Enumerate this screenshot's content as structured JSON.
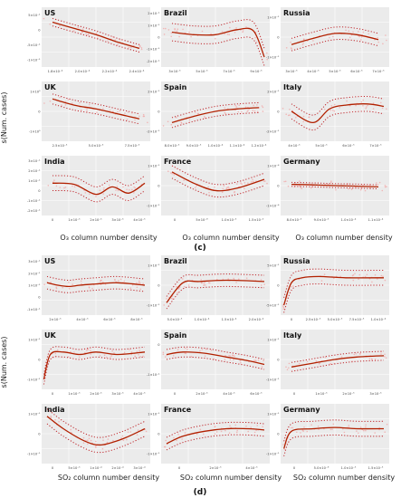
{
  "figure": {
    "panel_labels": [
      "(c)",
      "(d)"
    ]
  },
  "colors": {
    "fit_line": "#b22000",
    "ci_line": "#c0282d",
    "points": "#f2a0a0",
    "panel_bg": "#ebebeb",
    "grid": "#ffffff"
  },
  "chart_data": [
    {
      "type": "line",
      "group": "(c)",
      "xlabel": "O₃ column number density",
      "ylabel": "s(Num. cases)",
      "panels": [
        {
          "country": "US",
          "x": [
            0.1,
            0.3,
            0.5,
            0.7,
            0.9
          ],
          "fit": [
            0.6,
            0.35,
            0.1,
            -0.2,
            -0.45
          ],
          "ci_half": 0.15,
          "x_ticks": [
            "1.8×10⁻⁴",
            "2.0×10⁻⁴",
            "2.2×10⁻⁴",
            "2.4×10⁻⁴"
          ],
          "y_ticks": [
            "5×10⁻¹",
            "0",
            "-5×10⁻¹",
            "-1×10⁻¹"
          ]
        },
        {
          "country": "Brazil",
          "x": [
            0.1,
            0.3,
            0.5,
            0.7,
            0.85,
            0.95
          ],
          "fit": [
            0.2,
            0.1,
            0.1,
            0.3,
            0.25,
            -0.8
          ],
          "ci_half": 0.35,
          "x_ticks": [
            "3×10⁻⁵",
            "5×10⁻⁵",
            "7×10⁻⁵",
            "9×10⁻⁵"
          ],
          "y_ticks": [
            "2×10⁻¹",
            "1×10⁻¹",
            "0",
            "-1×10⁻¹",
            "-2×10⁻¹"
          ]
        },
        {
          "country": "Russia",
          "x": [
            0.1,
            0.3,
            0.5,
            0.7,
            0.9
          ],
          "fit": [
            -0.3,
            -0.05,
            0.15,
            0.1,
            -0.1
          ],
          "ci_half": 0.25,
          "x_ticks": [
            "3×10⁻⁵",
            "4×10⁻⁵",
            "5×10⁻⁵",
            "6×10⁻⁵",
            "7×10⁻⁵"
          ],
          "y_ticks": [
            "1×10⁻¹",
            "0",
            "-1×10⁻¹"
          ]
        },
        {
          "country": "UK",
          "x": [
            0.1,
            0.3,
            0.5,
            0.7,
            0.9
          ],
          "fit": [
            0.5,
            0.25,
            0.1,
            -0.1,
            -0.3
          ],
          "ci_half": 0.2,
          "x_ticks": [
            "2.5×10⁻⁵",
            "5.0×10⁻⁵",
            "7.5×10⁻⁵"
          ],
          "y_ticks": [
            "1×10⁰",
            "0",
            "-1×10⁰"
          ]
        },
        {
          "country": "Spain",
          "x": [
            0.1,
            0.3,
            0.5,
            0.7,
            0.9
          ],
          "fit": [
            -0.45,
            -0.2,
            0.0,
            0.1,
            0.15
          ],
          "ci_half": 0.2,
          "x_ticks": [
            "8.0×10⁻⁵",
            "9.0×10⁻⁵",
            "1.0×10⁻⁴",
            "1.1×10⁻⁴",
            "1.2×10⁻⁴"
          ],
          "y_ticks": [
            "2×10⁻¹",
            "0",
            "-2×10⁻¹"
          ]
        },
        {
          "country": "Italy",
          "x": [
            0.1,
            0.3,
            0.45,
            0.6,
            0.8,
            0.95
          ],
          "fit": [
            0.0,
            -0.45,
            0.1,
            0.25,
            0.3,
            0.2
          ],
          "ci_half": 0.3,
          "x_ticks": [
            "4×10⁻⁵",
            "5×10⁻⁵",
            "6×10⁻⁵",
            "7×10⁻⁵"
          ],
          "y_ticks": [
            "2×10⁻¹",
            "0",
            "-2×10⁻¹"
          ]
        },
        {
          "country": "India",
          "x": [
            0.1,
            0.3,
            0.5,
            0.65,
            0.8,
            0.95
          ],
          "fit": [
            0.1,
            0.05,
            -0.35,
            -0.05,
            -0.3,
            0.1
          ],
          "ci_half": 0.3,
          "x_ticks": [
            "0",
            "1×10⁻⁵",
            "2×10⁻⁵",
            "3×10⁻⁵",
            "4×10⁻⁵"
          ],
          "y_ticks": [
            "3×10⁻¹",
            "2×10⁻¹",
            "1×10⁻¹",
            "0",
            "-1×10⁻¹",
            "-2×10⁻¹"
          ]
        },
        {
          "country": "France",
          "x": [
            0.1,
            0.3,
            0.5,
            0.7,
            0.95
          ],
          "fit": [
            0.55,
            0.1,
            -0.2,
            -0.1,
            0.25
          ],
          "ci_half": 0.25,
          "x_ticks": [
            "0",
            "5×10⁻⁶",
            "1.0×10⁻⁵",
            "1.5×10⁻⁵"
          ],
          "y_ticks": [
            "1×10⁻¹",
            "0",
            "-1×10⁻¹"
          ]
        },
        {
          "country": "Germany",
          "x": [
            0.1,
            0.3,
            0.5,
            0.7,
            0.9
          ],
          "fit": [
            0.05,
            0.03,
            0.0,
            -0.02,
            -0.05
          ],
          "ci_half": 0.08,
          "x_ticks": [
            "8.0×10⁻⁵",
            "9.0×10⁻⁵",
            "1.0×10⁻⁴",
            "1.1×10⁻⁴"
          ],
          "y_ticks": [
            "1×10⁻⁴",
            "0",
            "-1×10⁻⁴"
          ]
        }
      ]
    },
    {
      "type": "line",
      "group": "(d)",
      "xlabel": "SO₂ column number density",
      "ylabel": "s(Num. cases)",
      "panels": [
        {
          "country": "US",
          "x": [
            0.05,
            0.15,
            0.25,
            0.35,
            0.5,
            0.7,
            0.95
          ],
          "fit": [
            0.1,
            0.0,
            -0.05,
            0.0,
            0.05,
            0.1,
            0.0
          ],
          "ci_half": 0.25,
          "x_ticks": [
            "2×10⁻⁵",
            "4×10⁻⁵",
            "6×10⁻⁵",
            "8×10⁻⁵"
          ],
          "y_ticks": [
            "3×10⁻¹",
            "2×10⁻¹",
            "1×10⁻¹",
            "0",
            "-1×10⁻¹"
          ]
        },
        {
          "country": "Brazil",
          "x": [
            0.05,
            0.2,
            0.35,
            0.6,
            0.95
          ],
          "fit": [
            -0.7,
            0.1,
            0.15,
            0.2,
            0.15
          ],
          "ci_half": 0.25,
          "x_ticks": [
            "5.0×10⁻⁵",
            "1.0×10⁻⁴",
            "1.5×10⁻⁴",
            "2.0×10⁻⁴"
          ],
          "y_ticks": [
            "1×10⁻¹",
            "0",
            "-1×10⁻¹"
          ]
        },
        {
          "country": "Russia",
          "x": [
            0.03,
            0.1,
            0.2,
            0.35,
            0.6,
            0.95
          ],
          "fit": [
            -0.8,
            0.1,
            0.3,
            0.35,
            0.3,
            0.3
          ],
          "ci_half": 0.3,
          "x_ticks": [
            "0",
            "2.5×10⁻⁵",
            "5.0×10⁻⁵",
            "7.5×10⁻⁵",
            "1.0×10⁻⁴"
          ],
          "y_ticks": [
            "5×10⁻¹",
            "0",
            "-5×10⁻¹"
          ]
        },
        {
          "country": "UK",
          "x": [
            0.02,
            0.08,
            0.2,
            0.35,
            0.5,
            0.7,
            0.95
          ],
          "fit": [
            -0.8,
            0.2,
            0.3,
            0.2,
            0.3,
            0.2,
            0.3
          ],
          "ci_half": 0.2,
          "x_ticks": [
            "0",
            "1×10⁻⁵",
            "2×10⁻⁵",
            "3×10⁻⁵",
            "4×10⁻⁵"
          ],
          "y_ticks": [
            "1×10⁻¹",
            "0",
            "-1×10⁻¹"
          ]
        },
        {
          "country": "Spain",
          "x": [
            0.05,
            0.2,
            0.4,
            0.6,
            0.8,
            0.95
          ],
          "fit": [
            0.2,
            0.3,
            0.25,
            0.1,
            -0.05,
            -0.2
          ],
          "ci_half": 0.2,
          "x_ticks": [
            "0",
            "2×10⁻⁵",
            "4×10⁻⁵",
            "6×10⁻⁵"
          ],
          "y_ticks": [
            "0",
            "-1×10⁻¹"
          ]
        },
        {
          "country": "Italy",
          "x": [
            0.1,
            0.3,
            0.5,
            0.7,
            0.95
          ],
          "fit": [
            -0.3,
            -0.15,
            0.0,
            0.1,
            0.15
          ],
          "ci_half": 0.18,
          "x_ticks": [
            "0",
            "1×10⁻⁵",
            "2×10⁻⁵",
            "3×10⁻⁵"
          ],
          "y_ticks": [
            "1×10⁻¹",
            "0",
            "-1×10⁻¹"
          ]
        },
        {
          "country": "India",
          "x": [
            0.05,
            0.2,
            0.4,
            0.55,
            0.75,
            0.95
          ],
          "fit": [
            0.7,
            0.2,
            -0.3,
            -0.45,
            -0.2,
            0.2
          ],
          "ci_half": 0.3,
          "x_ticks": [
            "0",
            "5×10⁻⁵",
            "1×10⁻⁴",
            "2×10⁻⁴",
            "3×10⁻⁴"
          ],
          "y_ticks": [
            "1×10⁻¹",
            "0",
            "-1×10⁻¹"
          ]
        },
        {
          "country": "France",
          "x": [
            0.05,
            0.2,
            0.4,
            0.6,
            0.8,
            0.95
          ],
          "fit": [
            -0.4,
            -0.1,
            0.1,
            0.2,
            0.2,
            0.15
          ],
          "ci_half": 0.25,
          "x_ticks": [
            "0",
            "2×10⁻⁵",
            "4×10⁻⁵"
          ],
          "y_ticks": [
            "1×10⁻¹",
            "0",
            "-1×10⁻¹"
          ]
        },
        {
          "country": "Germany",
          "x": [
            0.03,
            0.1,
            0.3,
            0.5,
            0.7,
            0.95
          ],
          "fit": [
            -0.6,
            0.1,
            0.2,
            0.25,
            0.2,
            0.2
          ],
          "ci_half": 0.3,
          "x_ticks": [
            "0",
            "5.0×10⁻⁶",
            "1.0×10⁻⁵",
            "1.5×10⁻⁵"
          ],
          "y_ticks": [
            "1×10⁻¹",
            "0",
            "-1×10⁻¹"
          ]
        }
      ]
    }
  ]
}
